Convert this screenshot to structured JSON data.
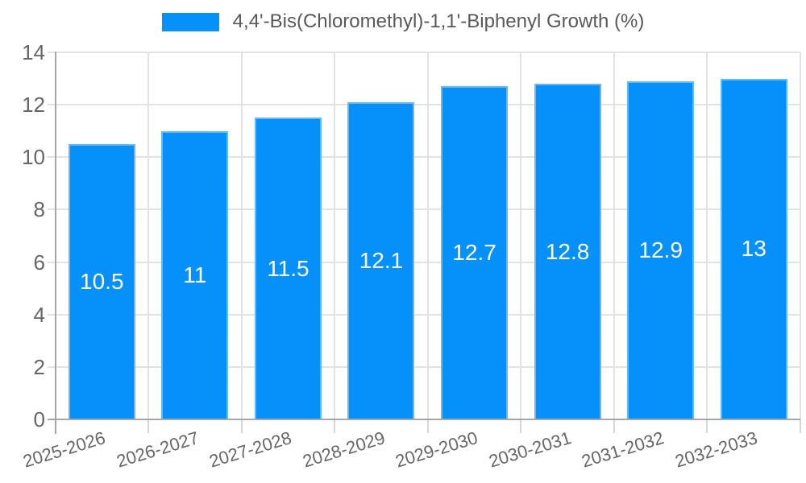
{
  "chart_data": {
    "type": "bar",
    "title": "",
    "legend": {
      "label": "4,4'-Bis(Chloromethyl)-1,1'-Biphenyl Growth (%)",
      "position": "top"
    },
    "categories": [
      "2025-2026",
      "2026-2027",
      "2027-2028",
      "2028-2029",
      "2029-2030",
      "2030-2031",
      "2031-2032",
      "2032-2033"
    ],
    "values": [
      10.5,
      11,
      11.5,
      12.1,
      12.7,
      12.8,
      12.9,
      13
    ],
    "bar_labels": [
      "10.5",
      "11",
      "11.5",
      "12.1",
      "12.7",
      "12.8",
      "12.9",
      "13"
    ],
    "xlabel": "",
    "ylabel": "",
    "ylim": [
      0,
      14
    ],
    "yticks": [
      0,
      2,
      4,
      6,
      8,
      10,
      12,
      14
    ],
    "ytick_labels": [
      "0",
      "2",
      "4",
      "6",
      "8",
      "10",
      "12",
      "14"
    ],
    "grid": true,
    "colors": {
      "bar": "#0690FA",
      "bar_border": "#67B8F9",
      "bar_label": "#FFFFFF",
      "grid": "#E2E2E2",
      "axis": "#A6A6A6",
      "x_tick": "#D6D6D6",
      "tick_label": "#666666",
      "legend_text": "#595959",
      "background": "#FFFFFF"
    }
  }
}
